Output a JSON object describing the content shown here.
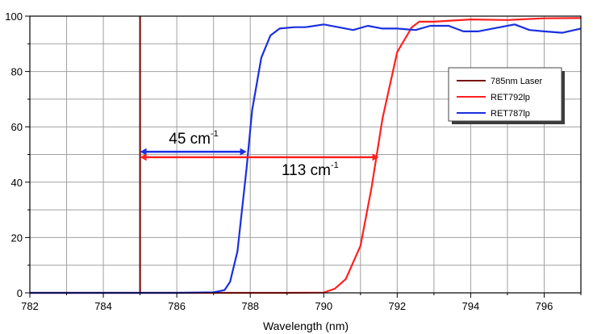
{
  "chart_data": {
    "type": "line",
    "title": "",
    "xlabel": "Wavelength (nm)",
    "ylabel": "",
    "xlim": [
      782,
      797
    ],
    "ylim": [
      0,
      100
    ],
    "x_ticks": [
      782,
      784,
      786,
      788,
      790,
      792,
      794,
      796
    ],
    "y_ticks": [
      0,
      20,
      40,
      60,
      80,
      100
    ],
    "grid": true,
    "legend_position": "top-right",
    "series": [
      {
        "name": "785nm Laser",
        "color": "#7a1414",
        "points": [
          [
            785,
            0
          ],
          [
            785,
            100
          ]
        ]
      },
      {
        "name": "RET792lp",
        "color": "#ff2020",
        "points": [
          [
            782,
            0
          ],
          [
            789,
            0
          ],
          [
            790,
            0.1
          ],
          [
            790.3,
            1.5
          ],
          [
            790.6,
            5
          ],
          [
            791,
            17
          ],
          [
            791.3,
            38
          ],
          [
            791.6,
            63
          ],
          [
            792,
            87
          ],
          [
            792.4,
            96
          ],
          [
            792.6,
            98
          ],
          [
            793,
            98
          ],
          [
            794,
            98.8
          ],
          [
            795,
            98.6
          ],
          [
            796,
            99.2
          ],
          [
            797,
            99.3
          ]
        ]
      },
      {
        "name": "RET787lp",
        "color": "#1a2fe0",
        "points": [
          [
            782,
            0
          ],
          [
            786,
            0
          ],
          [
            787,
            0.2
          ],
          [
            787.3,
            1
          ],
          [
            787.45,
            4
          ],
          [
            787.65,
            15
          ],
          [
            787.9,
            45
          ],
          [
            788.05,
            66
          ],
          [
            788.3,
            85
          ],
          [
            788.55,
            93
          ],
          [
            788.8,
            95.5
          ],
          [
            789.2,
            96
          ],
          [
            789.5,
            96
          ],
          [
            790,
            97
          ],
          [
            790.4,
            96
          ],
          [
            790.8,
            95
          ],
          [
            791.2,
            96.5
          ],
          [
            791.6,
            95.5
          ],
          [
            792,
            95.5
          ],
          [
            792.5,
            95
          ],
          [
            792.9,
            96.5
          ],
          [
            793.4,
            96.5
          ],
          [
            793.8,
            94.5
          ],
          [
            794.2,
            94.5
          ],
          [
            794.6,
            95.5
          ],
          [
            795.2,
            97
          ],
          [
            795.6,
            95
          ],
          [
            796,
            94.5
          ],
          [
            796.5,
            94
          ],
          [
            797,
            95.5
          ]
        ]
      }
    ],
    "annotations": [
      {
        "text": "45 cm",
        "superscript": "-1",
        "x_from": 785,
        "x_to": 787.9,
        "y": 51
      },
      {
        "text": "113 cm",
        "superscript": "-1",
        "x_from": 785,
        "x_to": 791.5,
        "y": 49
      }
    ]
  }
}
